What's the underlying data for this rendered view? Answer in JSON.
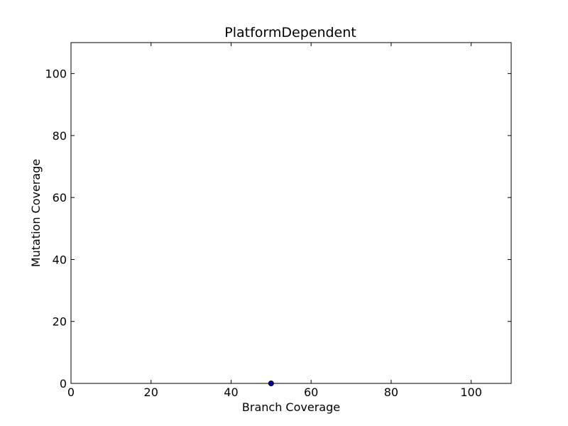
{
  "chart_data": {
    "type": "scatter",
    "title": "PlatformDependent",
    "xlabel": "Branch Coverage",
    "ylabel": "Mutation Coverage",
    "xlim": [
      0,
      110
    ],
    "ylim": [
      0,
      110
    ],
    "x_ticks": [
      "0",
      "20",
      "40",
      "60",
      "80",
      "100"
    ],
    "y_ticks": [
      "0",
      "20",
      "40",
      "60",
      "80",
      "100"
    ],
    "grid": false,
    "legend": "none",
    "series": [
      {
        "color": "#0000ff",
        "points": [
          {
            "x": 50,
            "y": 0
          }
        ]
      }
    ]
  }
}
